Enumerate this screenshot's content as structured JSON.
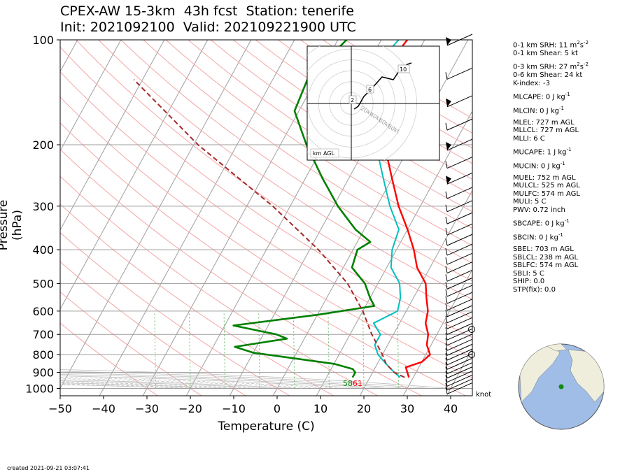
{
  "header": {
    "title_line1": "CPEX-AW 15-3km  43h fcst  Station: tenerife",
    "title_line2": "Init: 2021092100  Valid: 202109221900 UTC"
  },
  "footer": {
    "created": "created 2021-09-21 03:07:41",
    "wind_unit": "knot"
  },
  "indices": [
    {
      "label": "0-1 km SRH: 11 m",
      "sup": "2",
      "tail": "s",
      "sup2": "-2",
      "gap": false
    },
    {
      "label": "0-1 km Shear: 5 kt",
      "gap": false
    },
    {
      "label": "0-3 km SRH: 27 m",
      "sup": "2",
      "tail": "s",
      "sup2": "-2",
      "gap": true
    },
    {
      "label": "0-6 km Shear: 24 kt",
      "gap": false
    },
    {
      "label": "K-index: -3",
      "gap": false
    },
    {
      "label": "MLCAPE: 0 J kg",
      "sup": "-1",
      "gap": true
    },
    {
      "label": "MLCIN: 0 J kg",
      "sup": "-1",
      "gap": true
    },
    {
      "label": "MLEL: 727 m AGL",
      "gap": true
    },
    {
      "label": "MLLCL: 727 m AGL",
      "gap": false
    },
    {
      "label": "MLLI: 6 C",
      "gap": false
    },
    {
      "label": "MUCAPE: 1 J kg",
      "sup": "-1",
      "gap": true
    },
    {
      "label": "MUCIN: 0 J kg",
      "sup": "-1",
      "gap": true
    },
    {
      "label": "MUEL: 752 m AGL",
      "gap": true
    },
    {
      "label": "MULCL: 525 m AGL",
      "gap": false
    },
    {
      "label": "MULFC: 574 m AGL",
      "gap": false
    },
    {
      "label": "MULI: 5 C",
      "gap": false
    },
    {
      "label": "PWV: 0.72 inch",
      "gap": false
    },
    {
      "label": "SBCAPE: 0 J kg",
      "sup": "-1",
      "gap": true
    },
    {
      "label": "SBCIN: 0 J kg",
      "sup": "-1",
      "gap": true
    },
    {
      "label": "SBEL: 703 m AGL",
      "gap": true
    },
    {
      "label": "SBLCL: 238 m AGL",
      "gap": false
    },
    {
      "label": "SBLFC: 574 m AGL",
      "gap": false
    },
    {
      "label": "SBLI: 5 C",
      "gap": false
    },
    {
      "label": "SHIP: 0.0",
      "gap": false
    },
    {
      "label": "STP(fix): 0.0",
      "gap": false
    }
  ],
  "colors": {
    "temperature": "#ff0000",
    "dewpoint": "#008000",
    "wetbulb": "#00bfbf",
    "parcel": "#a52a2a",
    "dry_adiabat": "#f4a6a6",
    "moist_adiabat": "#bdbdbd",
    "mixing_ratio": "#66bb66",
    "isotherm": "#9e9e9e",
    "ocean": "#9fbde6",
    "land": "#efeedd"
  },
  "chart_data": {
    "type": "line",
    "subtype": "skew-T log-P sounding",
    "xlabel": "Temperature (C)",
    "ylabel": "Pressure (hPa)",
    "xlim": [
      -50,
      45
    ],
    "ylim": [
      1050,
      100
    ],
    "y_scale": "log",
    "xticks": [
      -50,
      -40,
      -30,
      -20,
      -10,
      0,
      10,
      20,
      30,
      40
    ],
    "yticks": [
      100,
      200,
      300,
      400,
      500,
      600,
      700,
      800,
      900,
      1000
    ],
    "surface_labels": {
      "dewpoint": "58",
      "temperature": "61"
    },
    "series": [
      {
        "name": "temperature",
        "points": [
          [
            100,
            -14
          ],
          [
            130,
            -16
          ],
          [
            160,
            -15
          ],
          [
            200,
            -6
          ],
          [
            250,
            0
          ],
          [
            300,
            5
          ],
          [
            350,
            10
          ],
          [
            400,
            14
          ],
          [
            450,
            17
          ],
          [
            500,
            21
          ],
          [
            550,
            23
          ],
          [
            600,
            25
          ],
          [
            650,
            26
          ],
          [
            700,
            28
          ],
          [
            750,
            29
          ],
          [
            800,
            31
          ],
          [
            840,
            30
          ],
          [
            870,
            27
          ],
          [
            900,
            28
          ],
          [
            930,
            29
          ]
        ]
      },
      {
        "name": "dewpoint",
        "points": [
          [
            100,
            -28
          ],
          [
            130,
            -32
          ],
          [
            160,
            -31
          ],
          [
            200,
            -24
          ],
          [
            250,
            -16
          ],
          [
            300,
            -9
          ],
          [
            350,
            -2
          ],
          [
            380,
            3
          ],
          [
            400,
            1
          ],
          [
            450,
            2
          ],
          [
            500,
            7
          ],
          [
            550,
            10
          ],
          [
            580,
            12
          ],
          [
            615,
            0
          ],
          [
            660,
            -18
          ],
          [
            700,
            -7
          ],
          [
            720,
            -4
          ],
          [
            760,
            -15
          ],
          [
            790,
            -10
          ],
          [
            850,
            10
          ],
          [
            880,
            15
          ],
          [
            900,
            16
          ],
          [
            930,
            16
          ]
        ]
      },
      {
        "name": "wetbulb",
        "points": [
          [
            100,
            -16
          ],
          [
            130,
            -19
          ],
          [
            160,
            -19
          ],
          [
            200,
            -8
          ],
          [
            250,
            -2
          ],
          [
            300,
            3
          ],
          [
            350,
            8
          ],
          [
            400,
            9
          ],
          [
            450,
            11
          ],
          [
            500,
            15
          ],
          [
            550,
            17
          ],
          [
            600,
            18
          ],
          [
            650,
            14
          ],
          [
            700,
            17
          ],
          [
            750,
            17
          ],
          [
            800,
            19
          ],
          [
            850,
            22
          ],
          [
            900,
            25
          ],
          [
            930,
            27
          ]
        ]
      },
      {
        "name": "parcel",
        "points": [
          [
            930,
            28
          ],
          [
            900,
            25
          ],
          [
            850,
            22
          ],
          [
            800,
            20
          ],
          [
            700,
            15
          ],
          [
            600,
            10
          ],
          [
            500,
            3
          ],
          [
            400,
            -8
          ],
          [
            300,
            -24
          ],
          [
            200,
            -49
          ],
          [
            130,
            -72
          ]
        ]
      }
    ],
    "hodograph": {
      "label": "km AGL",
      "ring_labels": [
        "20kt",
        "40kt",
        "60kt",
        "80kt"
      ],
      "height_labels": [
        "2",
        "6",
        "10"
      ]
    },
    "wind_barbs": "plotted at right edge, 100-1000 hPa"
  }
}
